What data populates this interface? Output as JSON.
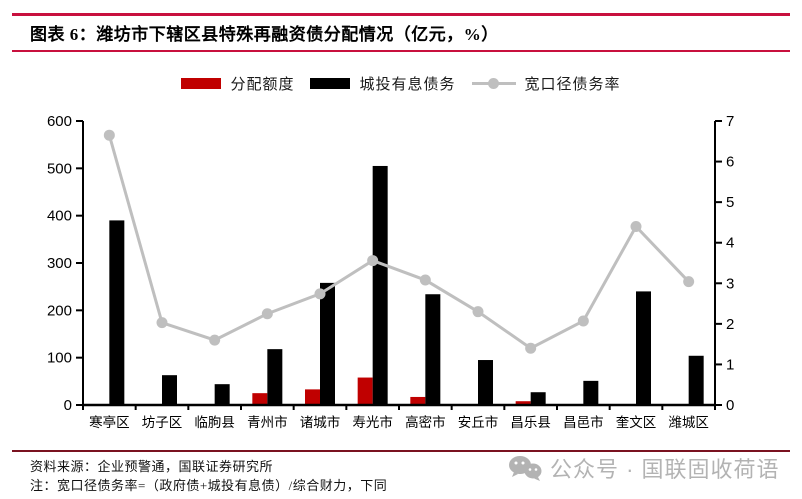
{
  "header": {
    "title": "图表 6：潍坊市下辖区县特殊再融资债分配情况（亿元，%）"
  },
  "chart_data": {
    "type": "combo",
    "title": "潍坊市下辖区县特殊再融资债分配情况（亿元，%）",
    "categories": [
      "寒亭区",
      "坊子区",
      "临朐县",
      "青州市",
      "诸城市",
      "寿光市",
      "高密市",
      "安丘市",
      "昌乐县",
      "昌邑市",
      "奎文区",
      "潍城区"
    ],
    "series": [
      {
        "name": "分配额度",
        "kind": "bar",
        "axis": "left",
        "color": "#c00000",
        "values": [
          0,
          0,
          0,
          25,
          33,
          58,
          17,
          0,
          8,
          0,
          0,
          0
        ]
      },
      {
        "name": "城投有息债务",
        "kind": "bar",
        "axis": "left",
        "color": "#000000",
        "values": [
          390,
          63,
          44,
          118,
          258,
          505,
          234,
          95,
          27,
          51,
          240,
          104
        ]
      },
      {
        "name": "宽口径债务率",
        "kind": "line",
        "axis": "right",
        "color": "#bfbfbf",
        "values": [
          6.65,
          2.03,
          1.6,
          2.25,
          2.74,
          3.56,
          3.08,
          2.3,
          1.4,
          2.07,
          4.4,
          3.04
        ]
      }
    ],
    "left_axis": {
      "min": 0,
      "max": 600,
      "step": 100
    },
    "right_axis": {
      "min": 0,
      "max": 7,
      "step": 1
    },
    "grid": false,
    "legend_position": "top"
  },
  "footer": {
    "source": "资料来源：企业预警通，国联证券研究所",
    "note": "注：宽口径债务率=（政府债+城投有息债）/综合财力，下同",
    "watermark": "公众号 · 国联固收荷语"
  },
  "colors": {
    "header_rule": "#c8103e",
    "footer_rule": "#7a1220",
    "axis": "#000000",
    "bar_red": "#c00000",
    "bar_black": "#000000",
    "line_gray": "#bfbfbf",
    "watermark_gray": "#b3b3b3"
  }
}
